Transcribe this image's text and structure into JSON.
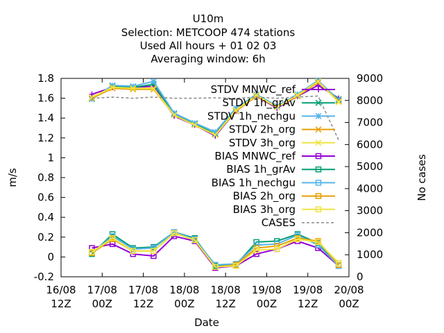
{
  "chart_data": {
    "type": "line",
    "title_lines": [
      "U10m",
      "Selection: METCOOP    474 stations",
      "Used  All hours  + 01 02 03",
      "Averaging window:  6h"
    ],
    "xlabel": "Date",
    "ylabel": "m/s",
    "y2label": "No cases",
    "xlim": [
      0,
      84
    ],
    "x_ticks": [
      {
        "x": 0,
        "label1": "16/08",
        "label2": "12Z"
      },
      {
        "x": 12,
        "label1": "17/08",
        "label2": "00Z"
      },
      {
        "x": 24,
        "label1": "17/08",
        "label2": "12Z"
      },
      {
        "x": 36,
        "label1": "18/08",
        "label2": "00Z"
      },
      {
        "x": 48,
        "label1": "18/08",
        "label2": "12Z"
      },
      {
        "x": 60,
        "label1": "19/08",
        "label2": "00Z"
      },
      {
        "x": 72,
        "label1": "19/08",
        "label2": "12Z"
      },
      {
        "x": 84,
        "label1": "20/08",
        "label2": "00Z"
      }
    ],
    "ylim": [
      -0.2,
      1.8
    ],
    "y_ticks": [
      "-0.2",
      "0",
      "0.2",
      "0.4",
      "0.6",
      "0.8",
      "1",
      "1.2",
      "1.4",
      "1.6",
      "1.8"
    ],
    "y2lim": [
      0,
      9000
    ],
    "y2_ticks": [
      "0",
      "1000",
      "2000",
      "3000",
      "4000",
      "5000",
      "6000",
      "7000",
      "8000",
      "9000"
    ],
    "legend_position": "top-right",
    "x": [
      9,
      15,
      21,
      27,
      33,
      39,
      45,
      51,
      57,
      63,
      69,
      75,
      81
    ],
    "series": [
      {
        "name": "STDV MNWC_ref",
        "color": "#9400d3",
        "marker": "plus",
        "y2": false,
        "values": [
          1.64,
          1.71,
          1.71,
          1.72,
          1.42,
          1.33,
          1.22,
          1.47,
          1.62,
          1.5,
          1.62,
          1.73,
          1.6
        ]
      },
      {
        "name": "STDV 1h_grAv",
        "color": "#009e73",
        "marker": "x",
        "y2": false,
        "values": [
          1.6,
          1.72,
          1.71,
          1.74,
          1.44,
          1.34,
          1.24,
          1.48,
          1.62,
          1.52,
          1.63,
          1.76,
          1.59
        ]
      },
      {
        "name": "STDV 1h_nechgu",
        "color": "#56b4e9",
        "marker": "star",
        "y2": false,
        "values": [
          1.59,
          1.73,
          1.72,
          1.77,
          1.45,
          1.35,
          1.26,
          1.5,
          1.64,
          1.52,
          1.64,
          1.78,
          1.58
        ]
      },
      {
        "name": "STDV 2h_org",
        "color": "#e69f00",
        "marker": "x",
        "y2": false,
        "values": [
          1.6,
          1.7,
          1.69,
          1.69,
          1.43,
          1.33,
          1.23,
          1.47,
          1.62,
          1.51,
          1.62,
          1.76,
          1.57
        ]
      },
      {
        "name": "STDV 3h_org",
        "color": "#f0e442",
        "marker": "x",
        "y2": false,
        "values": [
          1.61,
          1.71,
          1.7,
          1.7,
          1.43,
          1.33,
          1.23,
          1.48,
          1.63,
          1.51,
          1.63,
          1.77,
          1.56
        ]
      },
      {
        "name": "BIAS MNWC_ref",
        "color": "#9400d3",
        "marker": "square",
        "y2": false,
        "values": [
          0.09,
          0.13,
          0.03,
          0.01,
          0.21,
          0.16,
          -0.11,
          -0.09,
          0.03,
          0.08,
          0.16,
          0.09,
          -0.09
        ]
      },
      {
        "name": "BIAS 1h_grAv",
        "color": "#009e73",
        "marker": "square",
        "y2": false,
        "values": [
          0.03,
          0.23,
          0.09,
          0.1,
          0.25,
          0.19,
          -0.09,
          -0.08,
          0.15,
          0.16,
          0.23,
          0.14,
          -0.08
        ]
      },
      {
        "name": "BIAS 1h_nechgu",
        "color": "#56b4e9",
        "marker": "square",
        "y2": false,
        "values": [
          0.04,
          0.21,
          0.08,
          0.09,
          0.25,
          0.18,
          -0.08,
          -0.07,
          0.12,
          0.13,
          0.22,
          0.12,
          -0.09
        ]
      },
      {
        "name": "BIAS 2h_org",
        "color": "#e69f00",
        "marker": "square",
        "y2": false,
        "values": [
          0.04,
          0.18,
          0.06,
          0.06,
          0.24,
          0.17,
          -0.1,
          -0.08,
          0.09,
          0.11,
          0.19,
          0.16,
          -0.08
        ]
      },
      {
        "name": "BIAS 3h_org",
        "color": "#f0e442",
        "marker": "square",
        "y2": false,
        "values": [
          0.05,
          0.19,
          0.06,
          0.06,
          0.24,
          0.17,
          -0.1,
          -0.09,
          0.07,
          0.08,
          0.18,
          0.15,
          -0.06
        ]
      },
      {
        "name": "CASES",
        "color": "#888888",
        "marker": "none",
        "dashed": true,
        "y2": true,
        "values": [
          8100,
          8150,
          8100,
          8150,
          8100,
          8100,
          8120,
          8100,
          8150,
          8100,
          8150,
          8200,
          6200
        ]
      }
    ]
  }
}
